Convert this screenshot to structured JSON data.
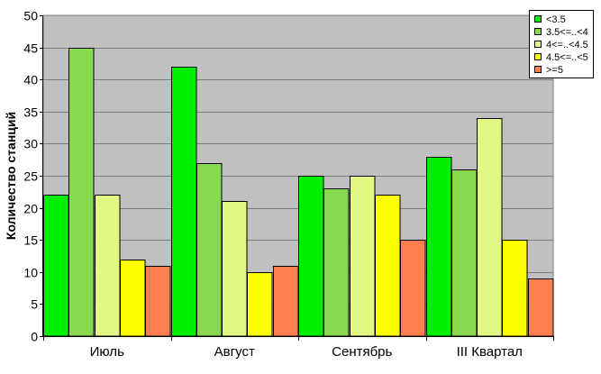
{
  "chart_data": {
    "type": "bar",
    "categories": [
      "Июль",
      "Август",
      "Сентябрь",
      "III Квартал"
    ],
    "series": [
      {
        "name": "<3.5",
        "color": "#00ee00",
        "values": [
          22,
          42,
          25,
          28
        ]
      },
      {
        "name": "3.5<=..<4",
        "color": "#88d850",
        "values": [
          45,
          27,
          23,
          26
        ]
      },
      {
        "name": "4<=..<4.5",
        "color": "#e2f884",
        "values": [
          22,
          21,
          25,
          34
        ]
      },
      {
        "name": "4.5<=..<5",
        "color": "#ffff00",
        "values": [
          12,
          10,
          22,
          15
        ]
      },
      {
        "name": ">=5",
        "color": "#ff7f50",
        "values": [
          11,
          11,
          15,
          9
        ]
      }
    ],
    "title": "",
    "xlabel": "",
    "ylabel": "Количество станций",
    "ylim": [
      0,
      50
    ],
    "yticks": [
      0,
      5,
      10,
      15,
      20,
      25,
      30,
      35,
      40,
      45,
      50
    ],
    "plot_background": "#c0c0c0",
    "grid": true,
    "legend_position": "top-right"
  }
}
